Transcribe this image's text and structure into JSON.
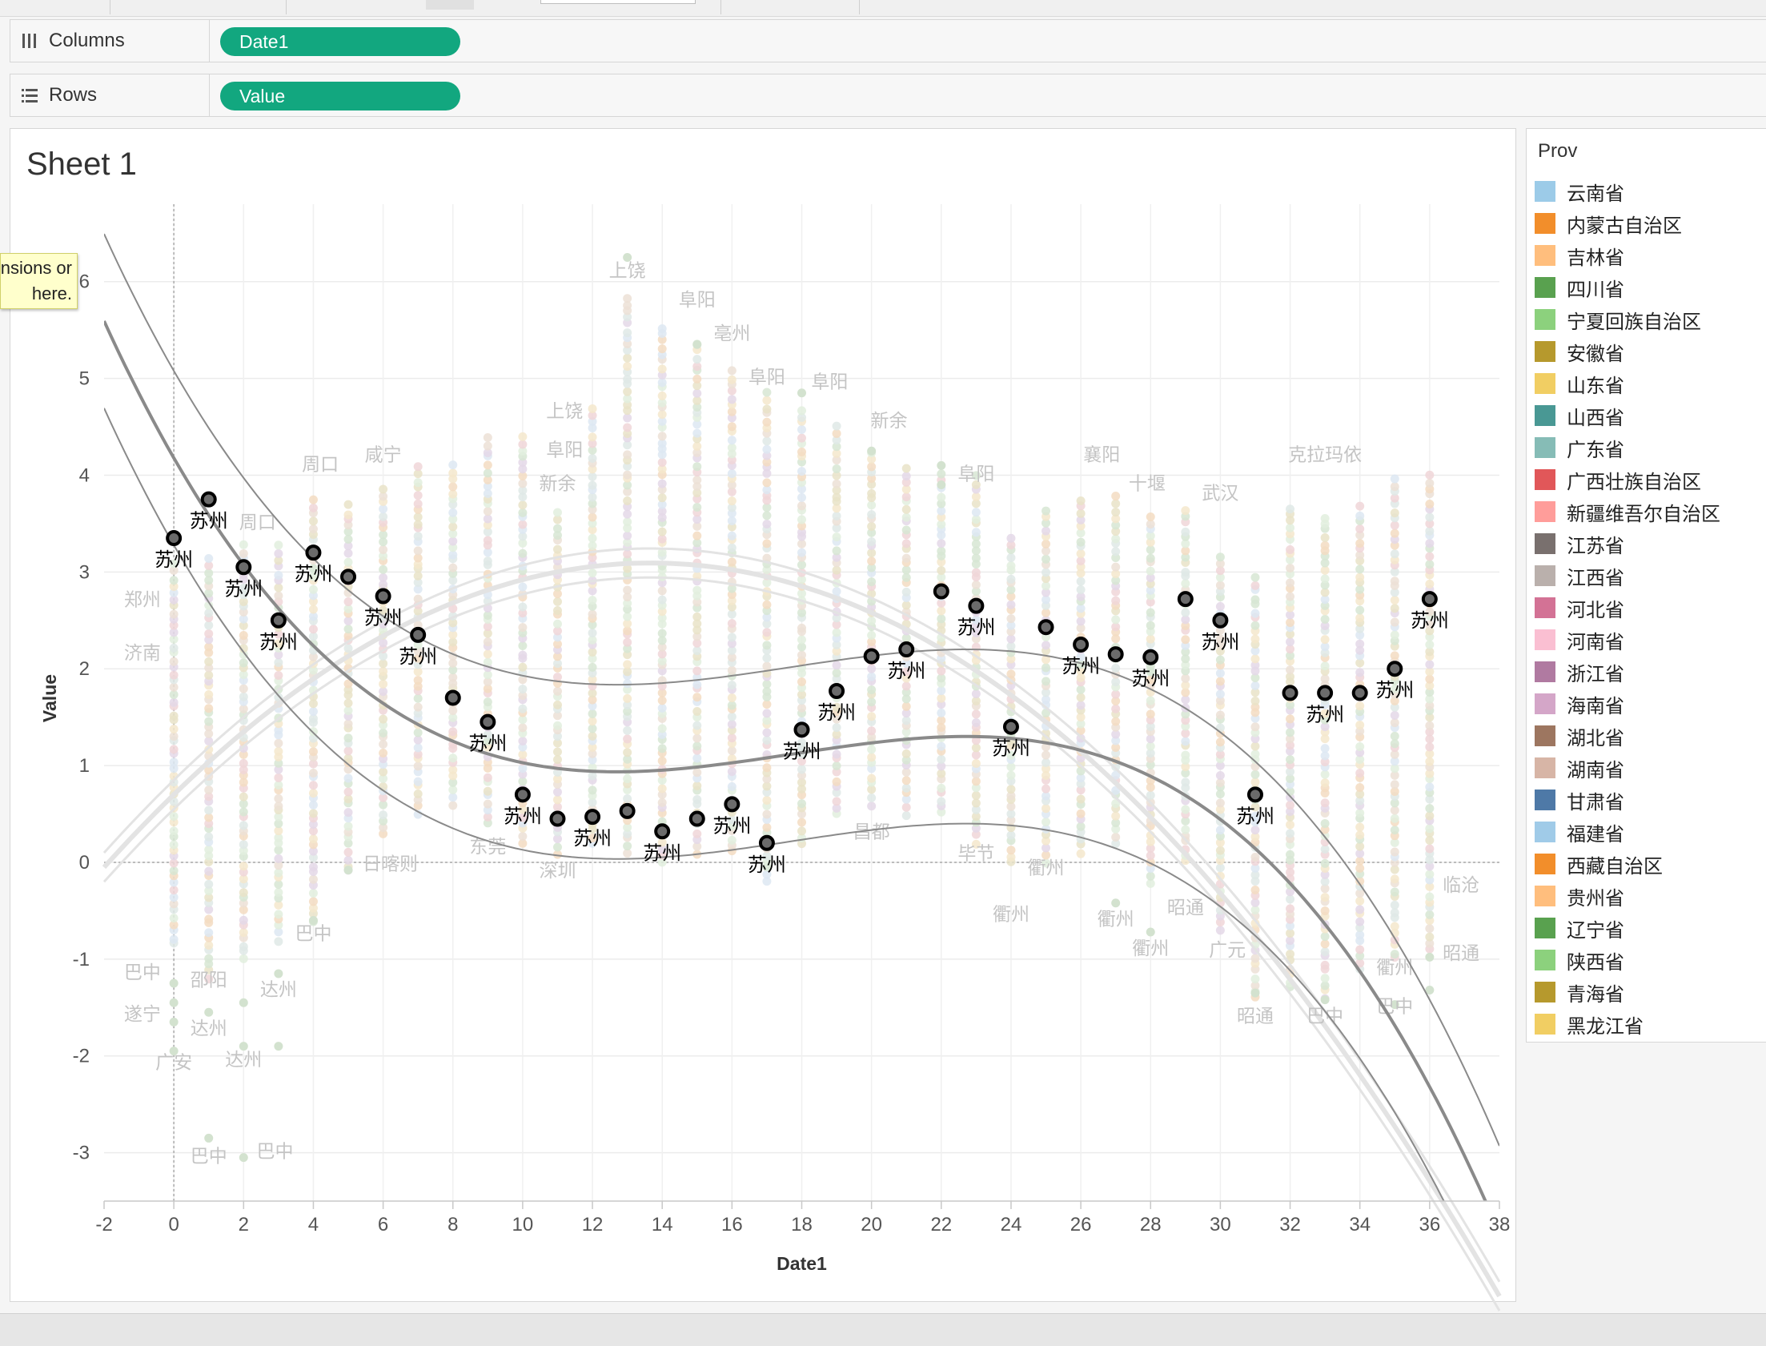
{
  "shelves": {
    "columns": {
      "label": "Columns",
      "icon": "columns-icon",
      "pill": "Date1"
    },
    "rows": {
      "label": "Rows",
      "icon": "rows-icon",
      "pill": "Value"
    }
  },
  "sheet": {
    "title": "Sheet 1"
  },
  "tooltip": {
    "line1": "nsions or",
    "line2": "here."
  },
  "legend": {
    "title": "Prov",
    "items": [
      {
        "label": "云南省",
        "color": "#9ccbe8"
      },
      {
        "label": "内蒙古自治区",
        "color": "#f28e2b"
      },
      {
        "label": "吉林省",
        "color": "#ffbe7d"
      },
      {
        "label": "四川省",
        "color": "#59a14f"
      },
      {
        "label": "宁夏回族自治区",
        "color": "#8cd17d"
      },
      {
        "label": "安徽省",
        "color": "#b6992d"
      },
      {
        "label": "山东省",
        "color": "#f1ce63"
      },
      {
        "label": "山西省",
        "color": "#499894"
      },
      {
        "label": "广东省",
        "color": "#86bcb6"
      },
      {
        "label": "广西壮族自治区",
        "color": "#e15759"
      },
      {
        "label": "新疆维吾尔自治区",
        "color": "#ff9d9a"
      },
      {
        "label": "江苏省",
        "color": "#79706e"
      },
      {
        "label": "江西省",
        "color": "#bab0ac"
      },
      {
        "label": "河北省",
        "color": "#d37295"
      },
      {
        "label": "河南省",
        "color": "#fabfd2"
      },
      {
        "label": "浙江省",
        "color": "#b07aa1"
      },
      {
        "label": "海南省",
        "color": "#d4a6c8"
      },
      {
        "label": "湖北省",
        "color": "#9d7660"
      },
      {
        "label": "湖南省",
        "color": "#d7b5a6"
      },
      {
        "label": "甘肃省",
        "color": "#4e79a7"
      },
      {
        "label": "福建省",
        "color": "#a0cbe8"
      },
      {
        "label": "西藏自治区",
        "color": "#f28e2b"
      },
      {
        "label": "贵州省",
        "color": "#ffbe7d"
      },
      {
        "label": "辽宁省",
        "color": "#59a14f"
      },
      {
        "label": "陕西省",
        "color": "#8cd17d"
      },
      {
        "label": "青海省",
        "color": "#b6992d"
      },
      {
        "label": "黑龙江省",
        "color": "#f1ce63"
      }
    ]
  },
  "chart_data": {
    "type": "scatter",
    "xlabel": "Date1",
    "ylabel": "Value",
    "xlim": [
      -2,
      38
    ],
    "ylim": [
      -3.5,
      6.8
    ],
    "xticks": [
      -2,
      0,
      2,
      4,
      6,
      8,
      10,
      12,
      14,
      16,
      18,
      20,
      22,
      24,
      26,
      28,
      30,
      32,
      34,
      36,
      38
    ],
    "yticks": [
      -3,
      -2,
      -1,
      0,
      1,
      2,
      3,
      4,
      5,
      6
    ],
    "highlight_series": {
      "name": "苏州",
      "x": [
        0,
        1,
        2,
        3,
        4,
        5,
        6,
        7,
        8,
        9,
        10,
        11,
        12,
        13,
        14,
        15,
        16,
        17,
        18,
        19,
        20,
        21,
        22,
        23,
        24,
        25,
        26,
        27,
        28,
        29,
        30,
        31,
        32,
        33,
        34,
        35,
        36
      ],
      "y": [
        3.35,
        3.75,
        3.05,
        2.5,
        3.2,
        2.95,
        2.75,
        2.35,
        1.7,
        1.45,
        0.7,
        0.45,
        0.47,
        0.53,
        0.32,
        0.45,
        0.6,
        0.2,
        1.37,
        1.77,
        2.13,
        2.2,
        2.8,
        2.65,
        1.4,
        2.43,
        2.25,
        2.15,
        2.12,
        2.72,
        2.5,
        0.7,
        1.75,
        1.75,
        1.75,
        2.0,
        2.72
      ],
      "labeled_x": [
        0,
        1,
        2,
        3,
        4,
        6,
        7,
        9,
        10,
        12,
        14,
        16,
        17,
        18,
        19,
        21,
        23,
        24,
        26,
        28,
        30,
        31,
        33,
        35,
        36
      ]
    },
    "trend": {
      "polynomial_coefficients": [
        4.178,
        -0.6276,
        0.03852,
        -0.000725
      ],
      "band_inner": 0.38,
      "band_outer": 0.9
    },
    "background_trend": {
      "polynomial_coefficients": [
        0.7,
        0.35,
        -0.0128
      ],
      "band": 0.15
    },
    "background_columns": [
      {
        "x": 0,
        "min": -0.85,
        "max": 3.1
      },
      {
        "x": 1,
        "min": -1.2,
        "max": 3.2
      },
      {
        "x": 2,
        "min": -1.0,
        "max": 3.3
      },
      {
        "x": 3,
        "min": -0.8,
        "max": 3.3
      },
      {
        "x": 4,
        "min": -0.6,
        "max": 3.8
      },
      {
        "x": 5,
        "min": -0.1,
        "max": 3.7
      },
      {
        "x": 6,
        "min": 0.3,
        "max": 3.9
      },
      {
        "x": 7,
        "min": 0.5,
        "max": 4.1
      },
      {
        "x": 8,
        "min": 0.6,
        "max": 4.1
      },
      {
        "x": 9,
        "min": 0.4,
        "max": 4.4
      },
      {
        "x": 10,
        "min": 0.2,
        "max": 4.4
      },
      {
        "x": 11,
        "min": 0.1,
        "max": 3.6
      },
      {
        "x": 12,
        "min": 0.2,
        "max": 4.7
      },
      {
        "x": 13,
        "min": 0.1,
        "max": 5.9
      },
      {
        "x": 14,
        "min": 0.0,
        "max": 5.6
      },
      {
        "x": 15,
        "min": 0.1,
        "max": 5.4
      },
      {
        "x": 16,
        "min": 0.1,
        "max": 5.1
      },
      {
        "x": 17,
        "min": -0.2,
        "max": 4.9
      },
      {
        "x": 18,
        "min": 0.2,
        "max": 4.7
      },
      {
        "x": 19,
        "min": 0.5,
        "max": 4.5
      },
      {
        "x": 20,
        "min": 0.6,
        "max": 4.3
      },
      {
        "x": 21,
        "min": 0.5,
        "max": 4.1
      },
      {
        "x": 22,
        "min": 0.5,
        "max": 4.0
      },
      {
        "x": 23,
        "min": 0.2,
        "max": 4.0
      },
      {
        "x": 24,
        "min": 0.0,
        "max": 3.4
      },
      {
        "x": 25,
        "min": 0.0,
        "max": 3.7
      },
      {
        "x": 26,
        "min": 0.1,
        "max": 3.8
      },
      {
        "x": 27,
        "min": 0.2,
        "max": 3.8
      },
      {
        "x": 28,
        "min": -0.2,
        "max": 3.6
      },
      {
        "x": 29,
        "min": 0.0,
        "max": 3.7
      },
      {
        "x": 30,
        "min": -0.7,
        "max": 3.2
      },
      {
        "x": 31,
        "min": -1.4,
        "max": 3.0
      },
      {
        "x": 32,
        "min": -1.3,
        "max": 3.7
      },
      {
        "x": 33,
        "min": -1.4,
        "max": 3.6
      },
      {
        "x": 34,
        "min": -1.1,
        "max": 3.7
      },
      {
        "x": 35,
        "min": -1.0,
        "max": 4.0
      },
      {
        "x": 36,
        "min": -0.9,
        "max": 4.0
      }
    ],
    "outliers": [
      {
        "x": 13,
        "y": 6.25
      },
      {
        "x": 15,
        "y": 5.35
      },
      {
        "x": 18,
        "y": 4.85
      },
      {
        "x": 20,
        "y": 4.25
      },
      {
        "x": 22,
        "y": 4.1
      },
      {
        "x": 22,
        "y": 3.9
      },
      {
        "x": 0,
        "y": -1.25
      },
      {
        "x": 0,
        "y": -1.45
      },
      {
        "x": 0,
        "y": -1.65
      },
      {
        "x": 0,
        "y": -1.95
      },
      {
        "x": 1,
        "y": -1.55
      },
      {
        "x": 1,
        "y": -2.85
      },
      {
        "x": 2,
        "y": -1.45
      },
      {
        "x": 2,
        "y": -1.9
      },
      {
        "x": 2,
        "y": -3.05
      },
      {
        "x": 3,
        "y": -1.15
      },
      {
        "x": 3,
        "y": -1.9
      },
      {
        "x": 4,
        "y": -0.6
      },
      {
        "x": 5,
        "y": -0.08
      },
      {
        "x": 27,
        "y": -0.42
      },
      {
        "x": 28,
        "y": -0.72
      },
      {
        "x": 31,
        "y": -1.35
      },
      {
        "x": 33,
        "y": -1.42
      },
      {
        "x": 35,
        "y": -1.47
      },
      {
        "x": 36,
        "y": -1.32
      },
      {
        "x": 36,
        "y": -0.98
      }
    ],
    "background_labels": [
      {
        "text": "上饶",
        "x": 13,
        "y": 6.05
      },
      {
        "text": "阜阳",
        "x": 15,
        "y": 5.75
      },
      {
        "text": "亳州",
        "x": 16,
        "y": 5.4
      },
      {
        "text": "阜阳",
        "x": 17,
        "y": 4.95
      },
      {
        "text": "阜阳",
        "x": 18.8,
        "y": 4.9
      },
      {
        "text": "上饶",
        "x": 11.2,
        "y": 4.6
      },
      {
        "text": "新余",
        "x": 20.5,
        "y": 4.5
      },
      {
        "text": "阜阳",
        "x": 11.2,
        "y": 4.2
      },
      {
        "text": "新余",
        "x": 11,
        "y": 3.85
      },
      {
        "text": "周口",
        "x": 4.2,
        "y": 4.05
      },
      {
        "text": "咸宁",
        "x": 6,
        "y": 4.15
      },
      {
        "text": "周口",
        "x": 2.4,
        "y": 3.45
      },
      {
        "text": "襄阳",
        "x": 26.6,
        "y": 4.15
      },
      {
        "text": "十堰",
        "x": 27.9,
        "y": 3.85
      },
      {
        "text": "武汉",
        "x": 30,
        "y": 3.75
      },
      {
        "text": "阜阳",
        "x": 23,
        "y": 3.95
      },
      {
        "text": "克拉玛依",
        "x": 33,
        "y": 4.15
      },
      {
        "text": "郑州",
        "x": -0.9,
        "y": 2.65
      },
      {
        "text": "济南",
        "x": -0.9,
        "y": 2.1
      },
      {
        "text": "东莞",
        "x": 9,
        "y": 0.1
      },
      {
        "text": "昌都",
        "x": 20,
        "y": 0.25
      },
      {
        "text": "日喀则",
        "x": 6.2,
        "y": -0.08
      },
      {
        "text": "深圳",
        "x": 11,
        "y": -0.15
      },
      {
        "text": "毕节",
        "x": 23,
        "y": 0.03
      },
      {
        "text": "衢州",
        "x": 25,
        "y": -0.12
      },
      {
        "text": "衢州",
        "x": 24,
        "y": -0.6
      },
      {
        "text": "衢州",
        "x": 27,
        "y": -0.65
      },
      {
        "text": "昭通",
        "x": 29,
        "y": -0.53
      },
      {
        "text": "衢州",
        "x": 28,
        "y": -0.95
      },
      {
        "text": "广元",
        "x": 30.2,
        "y": -0.97
      },
      {
        "text": "临沧",
        "x": 36.9,
        "y": -0.3
      },
      {
        "text": "昭通",
        "x": 36.9,
        "y": -1.0
      },
      {
        "text": "衢州",
        "x": 35,
        "y": -1.15
      },
      {
        "text": "巴中",
        "x": 35,
        "y": -1.55
      },
      {
        "text": "昭通",
        "x": 31,
        "y": -1.65
      },
      {
        "text": "巴中",
        "x": 33,
        "y": -1.65
      },
      {
        "text": "巴中",
        "x": 4,
        "y": -0.8
      },
      {
        "text": "巴中",
        "x": -0.9,
        "y": -1.2
      },
      {
        "text": "邵阳",
        "x": 1,
        "y": -1.28
      },
      {
        "text": "达州",
        "x": 3,
        "y": -1.38
      },
      {
        "text": "遂宁",
        "x": -0.9,
        "y": -1.63
      },
      {
        "text": "达州",
        "x": 1,
        "y": -1.78
      },
      {
        "text": "广安",
        "x": 0,
        "y": -2.13
      },
      {
        "text": "达州",
        "x": 2,
        "y": -2.1
      },
      {
        "text": "巴中",
        "x": 1,
        "y": -3.1
      },
      {
        "text": "巴中",
        "x": 2.9,
        "y": -3.05
      }
    ],
    "grid": "on",
    "legend_position": "right"
  }
}
